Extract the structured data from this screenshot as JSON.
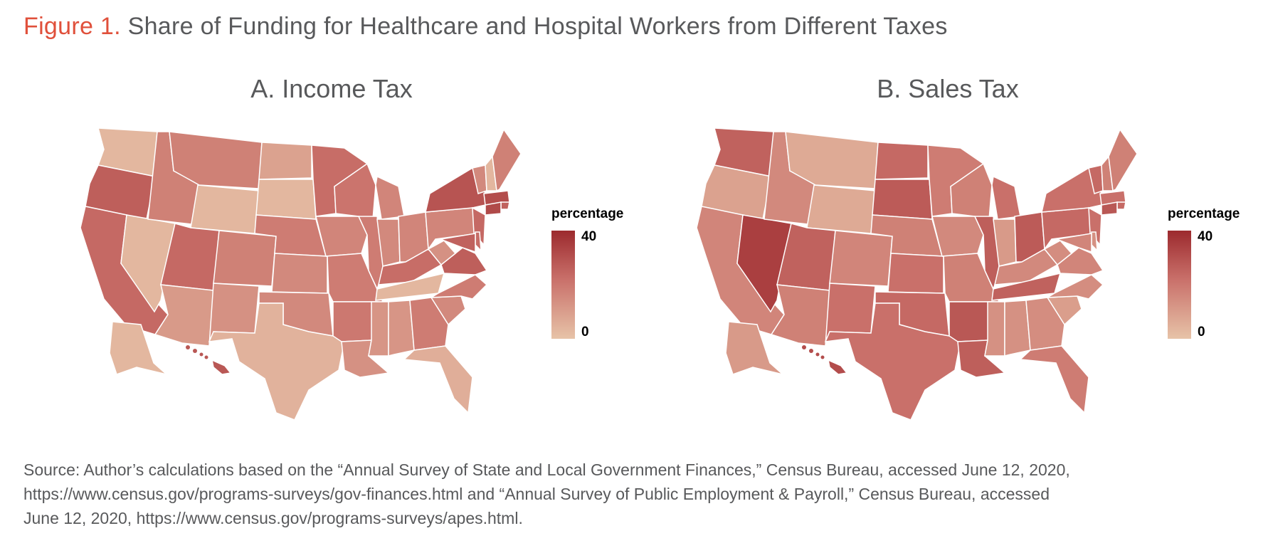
{
  "figure": {
    "label": "Figure 1.",
    "title": "Share of Funding for Healthcare and Hospital Workers from Different Taxes"
  },
  "panels": [
    {
      "title": "A. Income Tax",
      "legend": {
        "title": "percentage",
        "max": "40",
        "min": "0"
      },
      "scale": {
        "min": 0,
        "max": 40,
        "colors": [
          "#e7c3a8",
          "#c9706a",
          "#9c2a2e"
        ]
      },
      "shares": {
        "WA": 3,
        "OR": 25,
        "CA": 22,
        "NV": 3,
        "ID": 16,
        "MT": 16,
        "WY": 3,
        "UT": 22,
        "AZ": 10,
        "CO": 16,
        "NM": 12,
        "ND": 8,
        "SD": 3,
        "NE": 17,
        "KS": 14,
        "OK": 14,
        "TX": 4,
        "MN": 21,
        "IA": 15,
        "MO": 17,
        "AR": 18,
        "LA": 12,
        "WI": 19,
        "IL": 17,
        "MI": 15,
        "IN": 14,
        "OH": 15,
        "KY": 21,
        "TN": 3,
        "MS": 11,
        "AL": 11,
        "GA": 17,
        "FL": 5,
        "SC": 14,
        "NC": 17,
        "VA": 25,
        "WV": 12,
        "PA": 15,
        "NY": 28,
        "VT": 14,
        "NH": 3,
        "ME": 16,
        "MA": 30,
        "RI": 24,
        "CT": 31,
        "NJ": 22,
        "DE": 21,
        "MD": 24,
        "AK": 3,
        "HI": 27
      }
    },
    {
      "title": "B. Sales Tax",
      "legend": {
        "title": "percentage",
        "max": "40",
        "min": "0"
      },
      "scale": {
        "min": 0,
        "max": 40,
        "colors": [
          "#e7c3a8",
          "#c9706a",
          "#9c2a2e"
        ]
      },
      "shares": {
        "WA": 24,
        "OR": 8,
        "CA": 15,
        "NV": 34,
        "ID": 14,
        "MT": 6,
        "WY": 6,
        "UT": 24,
        "AZ": 16,
        "CO": 15,
        "NM": 20,
        "ND": 22,
        "SD": 26,
        "NE": 16,
        "KS": 20,
        "OK": 22,
        "TX": 20,
        "MN": 17,
        "IA": 14,
        "MO": 16,
        "AR": 27,
        "LA": 25,
        "WI": 16,
        "IL": 25,
        "MI": 20,
        "IN": 10,
        "OH": 26,
        "KY": 14,
        "TN": 24,
        "MS": 12,
        "AL": 12,
        "GA": 13,
        "FL": 17,
        "SC": 9,
        "NC": 13,
        "VA": 15,
        "WV": 13,
        "PA": 22,
        "NY": 20,
        "VT": 22,
        "NH": 16,
        "ME": 16,
        "MA": 20,
        "RI": 22,
        "CT": 27,
        "NJ": 20,
        "DE": 12,
        "MD": 15,
        "AK": 10,
        "HI": 30
      }
    }
  ],
  "source": {
    "lines": [
      "Source: Author’s calculations based on the “Annual Survey of State and Local Government Finances,” Census Bureau, accessed June 12, 2020,",
      "https://www.census.gov/programs-surveys/gov-finances.html and “Annual Survey of Public Employment & Payroll,” Census Bureau, accessed",
      "June 12, 2020, https://www.census.gov/programs-surveys/apes.html."
    ]
  }
}
